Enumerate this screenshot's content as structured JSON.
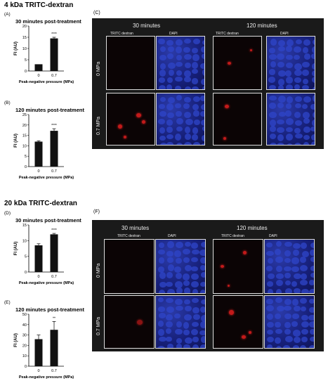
{
  "sections": [
    {
      "title": "4 kDa TRITC-dextran",
      "micro_label": "(C)"
    },
    {
      "title": "20 kDa TRITC-dextran",
      "micro_label": "(F)"
    }
  ],
  "micro": {
    "col_titles": [
      "30 minutes",
      "120 minutes"
    ],
    "sub_titles": [
      "TRITC dextran",
      "DAPI",
      "TRITC dextran",
      "DAPI"
    ],
    "row_labels": [
      "0 MPa",
      "0.7 MPa"
    ],
    "colors": {
      "tritc": "#c21a1a",
      "dapi": "#2f45c9",
      "background": "#1a1a1a"
    }
  },
  "chart_data": [
    {
      "panel": "(A)",
      "type": "bar",
      "title": "30 minutes post-treatment",
      "xlabel": "Peak-negative pressure (MPa)",
      "ylabel": "FI (AU)",
      "categories": [
        "0",
        "0.7"
      ],
      "values": [
        3,
        14.5
      ],
      "errors": [
        0,
        0.5
      ],
      "ylim": [
        0,
        20
      ],
      "yticks": [
        "0",
        "5",
        "10",
        "15",
        "20"
      ],
      "significance": "****",
      "bar_color": "#111111"
    },
    {
      "panel": "(B)",
      "type": "bar",
      "title": "120 minutes post-treatment",
      "xlabel": "Peak-negative pressure (MPa)",
      "ylabel": "FI (AU)",
      "categories": [
        "0",
        "0.7"
      ],
      "values": [
        12,
        17.2
      ],
      "errors": [
        0.4,
        1.0
      ],
      "ylim": [
        0,
        25
      ],
      "yticks": [
        "0",
        "5",
        "10",
        "15",
        "20",
        "25"
      ],
      "significance": "****",
      "bar_color": "#111111"
    },
    {
      "panel": "(D)",
      "type": "bar",
      "title": "30 minutes post-treatment",
      "xlabel": "Peak-negative pressure (MPa)",
      "ylabel": "FI (AU)",
      "categories": [
        "0",
        "0.7"
      ],
      "values": [
        8.5,
        12
      ],
      "errors": [
        0.5,
        0.3
      ],
      "ylim": [
        0,
        15
      ],
      "yticks": [
        "0",
        "5",
        "10",
        "15"
      ],
      "significance": "****",
      "bar_color": "#111111"
    },
    {
      "panel": "(E)",
      "type": "bar",
      "title": "120 minutes post-treatment",
      "xlabel": "Peak-negative pressure (MPa)",
      "ylabel": "FI (AU)",
      "categories": [
        "0",
        "0.7"
      ],
      "values": [
        26,
        35
      ],
      "errors": [
        4,
        8
      ],
      "ylim": [
        0,
        50
      ],
      "yticks": [
        "0",
        "10",
        "20",
        "30",
        "40",
        "50"
      ],
      "significance": "**",
      "bar_color": "#111111"
    }
  ]
}
